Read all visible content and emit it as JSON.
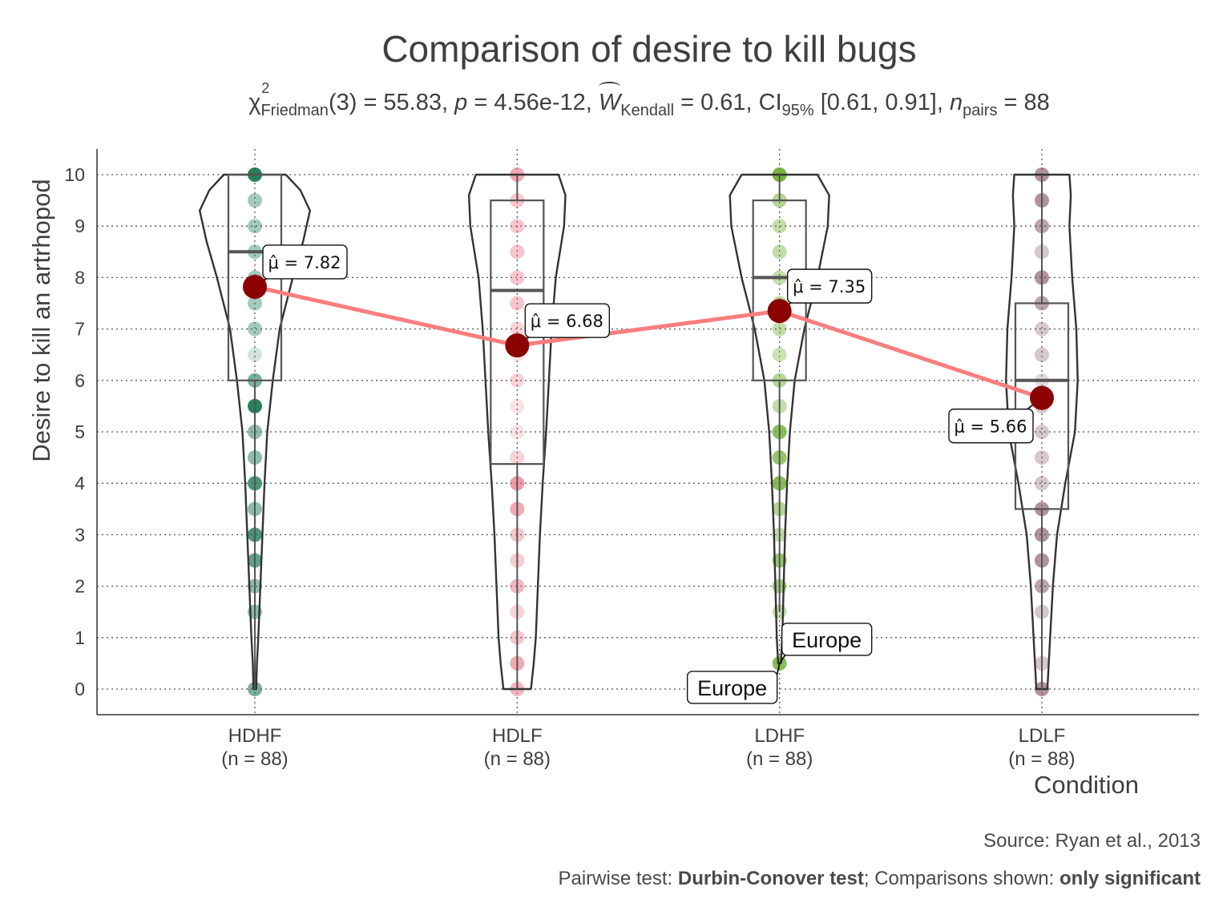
{
  "chart_data": {
    "type": "violin",
    "title": "Comparison of desire to kill bugs",
    "subtitle": {
      "chi": "χ",
      "chi_sup": "2",
      "chi_sub": "Friedman",
      "df": "(3) = 55.83, ",
      "p_sym": "p",
      "p_val": " = 4.56e-12, ",
      "w_sym": "W",
      "w_sub": "Kendall",
      "w_val": " = 0.61, CI",
      "ci_sub": "95%",
      "ci_val": " [0.61, 0.91], ",
      "n_sym": "n",
      "n_sub": "pairs",
      "n_val": " = 88"
    },
    "ylabel": "Desire to kill an artrhopod",
    "xlabel": "Condition",
    "ylim": [
      -0.5,
      10.5
    ],
    "yticks": [
      0,
      1,
      2,
      3,
      4,
      5,
      6,
      7,
      8,
      9,
      10
    ],
    "grid": "dotted major",
    "categories": [
      "HDHF",
      "HDLF",
      "LDHF",
      "LDLF"
    ],
    "category_n": [
      "(n = 88)",
      "(n = 88)",
      "(n = 88)",
      "(n = 88)"
    ],
    "mean_line_color": "#f97d7e",
    "mean_point_color": "#8b0000",
    "groups": [
      {
        "name": "HDHF",
        "color": "#1b7b52",
        "mean": 7.82,
        "mean_label": "μ̂ = 7.82",
        "box": {
          "q1": 6,
          "median": 8.5,
          "q3": 10,
          "min": 0,
          "max": 10
        },
        "points": [
          10,
          9.5,
          9,
          8.5,
          8,
          7.5,
          7,
          6.5,
          6,
          5.5,
          5,
          4.5,
          4,
          3.5,
          3,
          2.5,
          2,
          1.5,
          0
        ],
        "point_alpha": [
          0.95,
          0.4,
          0.4,
          0.4,
          0.4,
          0.4,
          0.4,
          0.2,
          0.6,
          0.95,
          0.5,
          0.5,
          0.8,
          0.5,
          0.8,
          0.7,
          0.5,
          0.5,
          0.6
        ],
        "violin": [
          [
            0,
            0.02
          ],
          [
            0.5,
            0.03
          ],
          [
            1,
            0.05
          ],
          [
            2,
            0.08
          ],
          [
            3,
            0.11
          ],
          [
            4,
            0.14
          ],
          [
            5,
            0.18
          ],
          [
            6,
            0.26
          ],
          [
            7,
            0.36
          ],
          [
            8,
            0.55
          ],
          [
            8.7,
            0.7
          ],
          [
            9.3,
            0.8
          ],
          [
            9.7,
            0.66
          ],
          [
            10,
            0.45
          ]
        ]
      },
      {
        "name": "HDLF",
        "color": "#e8707f",
        "mean": 6.68,
        "mean_label": "μ̂ = 6.68",
        "box": {
          "q1": 4.375,
          "median": 7.75,
          "q3": 9.5,
          "min": 0,
          "max": 10
        },
        "points": [
          10,
          9.5,
          9,
          8.5,
          8,
          7.5,
          7,
          6.5,
          6,
          5.5,
          5,
          4.5,
          4,
          3.5,
          3,
          2.5,
          2,
          1.5,
          1,
          0.5,
          0
        ],
        "point_alpha": [
          0.6,
          0.4,
          0.4,
          0.4,
          0.4,
          0.4,
          0.3,
          0.2,
          0.3,
          0.2,
          0.2,
          0.3,
          0.7,
          0.6,
          0.4,
          0.35,
          0.5,
          0.3,
          0.4,
          0.6,
          0.5
        ],
        "violin": [
          [
            0,
            0.2
          ],
          [
            0.5,
            0.24
          ],
          [
            1,
            0.27
          ],
          [
            2,
            0.3
          ],
          [
            3,
            0.33
          ],
          [
            4,
            0.37
          ],
          [
            5,
            0.42
          ],
          [
            6,
            0.46
          ],
          [
            7,
            0.5
          ],
          [
            8,
            0.56
          ],
          [
            9,
            0.68
          ],
          [
            9.6,
            0.7
          ],
          [
            10,
            0.6
          ]
        ]
      },
      {
        "name": "LDHF",
        "color": "#6aab2a",
        "mean": 7.35,
        "mean_label": "μ̂ = 7.35",
        "box": {
          "q1": 6,
          "median": 8,
          "q3": 9.5,
          "min": 1.5,
          "max": 10
        },
        "points": [
          10,
          9.5,
          9,
          8.5,
          8,
          7.5,
          7,
          6.5,
          6,
          5.5,
          5,
          4.5,
          4,
          3.5,
          3,
          2.5,
          2,
          1.5,
          0.5
        ],
        "point_alpha": [
          0.9,
          0.5,
          0.4,
          0.4,
          0.4,
          0.4,
          0.4,
          0.35,
          0.5,
          0.4,
          0.8,
          0.7,
          0.8,
          0.5,
          0.4,
          0.7,
          0.6,
          0.4,
          0.8
        ],
        "violin": [
          [
            0.5,
            0.02
          ],
          [
            1,
            0.04
          ],
          [
            1.5,
            0.05
          ],
          [
            2,
            0.06
          ],
          [
            3,
            0.08
          ],
          [
            4,
            0.11
          ],
          [
            5,
            0.15
          ],
          [
            6,
            0.22
          ],
          [
            7,
            0.36
          ],
          [
            8,
            0.55
          ],
          [
            9,
            0.7
          ],
          [
            9.6,
            0.72
          ],
          [
            10,
            0.55
          ]
        ]
      },
      {
        "name": "LDLF",
        "color": "#7a4a5a",
        "mean": 5.66,
        "mean_label": "μ̂ = 5.66",
        "box": {
          "q1": 3.5,
          "median": 6,
          "q3": 7.5,
          "min": 0,
          "max": 10
        },
        "points": [
          10,
          9.5,
          9,
          8.5,
          8,
          7.5,
          7,
          6.5,
          6,
          5.5,
          5,
          4.5,
          4,
          3.5,
          3,
          2.5,
          2,
          1.5,
          0.5,
          0
        ],
        "point_alpha": [
          0.6,
          0.6,
          0.5,
          0.3,
          0.6,
          0.5,
          0.3,
          0.3,
          0.2,
          0.3,
          0.3,
          0.3,
          0.3,
          0.6,
          0.6,
          0.6,
          0.5,
          0.3,
          0.3,
          0.6
        ],
        "violin": [
          [
            0,
            0.08
          ],
          [
            0.5,
            0.1
          ],
          [
            1,
            0.12
          ],
          [
            2,
            0.16
          ],
          [
            3,
            0.22
          ],
          [
            4,
            0.34
          ],
          [
            5,
            0.48
          ],
          [
            6,
            0.52
          ],
          [
            7,
            0.5
          ],
          [
            8,
            0.44
          ],
          [
            9,
            0.4
          ],
          [
            9.6,
            0.42
          ],
          [
            10,
            0.4
          ]
        ]
      }
    ],
    "outlier_labels": [
      {
        "group": "LDHF",
        "y": 0.5,
        "text": "Europe",
        "side": "right"
      },
      {
        "group": "LDHF",
        "y": 0.5,
        "text": "Europe",
        "side": "left-below"
      }
    ]
  },
  "footer": {
    "caption": "Source: Ryan et al., 2013",
    "pairwise_prefix": "Pairwise test: ",
    "pairwise_test": "Durbin-Conover test",
    "comparisons_prefix": "; Comparisons shown: ",
    "comparisons_value": "only significant"
  }
}
